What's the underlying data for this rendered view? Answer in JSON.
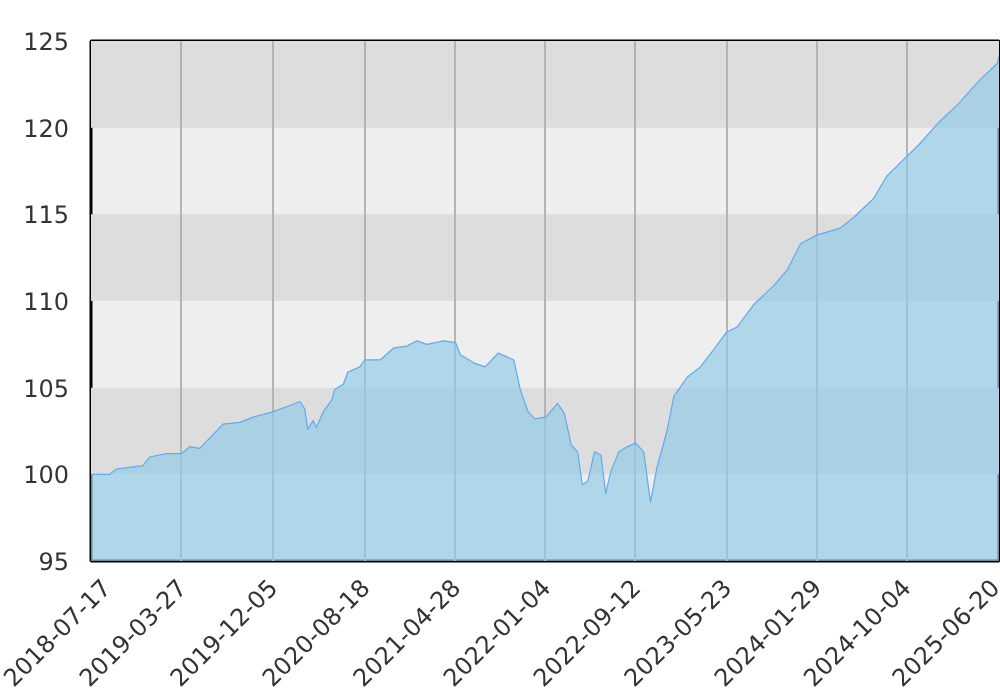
{
  "chart_data": {
    "type": "area",
    "x": [
      "2018-07-17",
      "2018-09-07",
      "2018-09-25",
      "2018-12-09",
      "2018-12-27",
      "2019-02-12",
      "2019-03-27",
      "2019-04-18",
      "2019-05-16",
      "2019-07-20",
      "2019-09-05",
      "2019-10-12",
      "2019-12-05",
      "2020-01-13",
      "2020-02-19",
      "2020-03-03",
      "2020-03-12",
      "2020-03-27",
      "2020-04-05",
      "2020-04-24",
      "2020-05-18",
      "2020-05-26",
      "2020-06-19",
      "2020-07-02",
      "2020-08-04",
      "2020-08-18",
      "2020-09-30",
      "2020-11-07",
      "2020-12-13",
      "2021-01-10",
      "2021-02-07",
      "2021-03-26",
      "2021-04-28",
      "2021-05-11",
      "2021-06-21",
      "2021-07-19",
      "2021-08-25",
      "2021-10-07",
      "2021-10-25",
      "2021-11-16",
      "2021-12-05",
      "2022-01-04",
      "2022-02-06",
      "2022-02-25",
      "2022-03-16",
      "2022-04-03",
      "2022-04-16",
      "2022-05-01",
      "2022-05-20",
      "2022-06-07",
      "2022-06-20",
      "2022-07-05",
      "2022-07-27",
      "2022-08-20",
      "2022-09-12",
      "2022-10-04",
      "2022-10-23",
      "2022-11-10",
      "2022-12-08",
      "2022-12-27",
      "2023-02-02",
      "2023-03-11",
      "2023-04-17",
      "2023-05-23",
      "2023-06-21",
      "2023-08-07",
      "2023-10-02",
      "2023-11-08",
      "2023-12-15",
      "2024-01-29",
      "2024-04-03",
      "2024-05-10",
      "2024-07-05",
      "2024-08-11",
      "2024-10-04",
      "2024-11-08",
      "2025-01-03",
      "2025-02-28",
      "2025-04-25",
      "2025-06-15",
      "2025-06-20"
    ],
    "series": [
      {
        "color": "#62a9f0",
        "values": [
          100.0,
          100.0,
          100.3,
          100.5,
          101.0,
          101.2,
          101.2,
          101.6,
          101.5,
          102.9,
          103.0,
          103.3,
          103.6,
          103.9,
          104.2,
          103.8,
          102.6,
          103.1,
          102.7,
          103.6,
          104.3,
          104.9,
          105.2,
          105.9,
          106.2,
          106.6,
          106.6,
          107.3,
          107.4,
          107.7,
          107.5,
          107.7,
          107.6,
          106.9,
          106.4,
          106.2,
          107.0,
          106.6,
          104.9,
          103.6,
          103.2,
          103.3,
          104.1,
          103.5,
          101.7,
          101.3,
          99.4,
          99.6,
          101.3,
          101.1,
          98.9,
          100.2,
          101.3,
          101.6,
          101.8,
          101.3,
          98.4,
          100.4,
          102.5,
          104.5,
          105.6,
          106.2,
          107.2,
          108.2,
          108.5,
          109.8,
          110.9,
          111.8,
          113.3,
          113.8,
          114.2,
          114.8,
          115.9,
          117.2,
          118.3,
          119.0,
          120.3,
          121.4,
          122.7,
          123.7,
          124.1
        ]
      }
    ],
    "xlim": [
      "2018-07-17",
      "2025-06-20"
    ],
    "xticks": [
      {
        "value": "2018-07-17",
        "label": "2018-07-17"
      },
      {
        "value": "2019-03-27",
        "label": "2019-03-27"
      },
      {
        "value": "2019-12-05",
        "label": "2019-12-05"
      },
      {
        "value": "2020-08-18",
        "label": "2020-08-18"
      },
      {
        "value": "2021-04-28",
        "label": "2021-04-28"
      },
      {
        "value": "2022-01-04",
        "label": "2022-01-04"
      },
      {
        "value": "2022-09-12",
        "label": "2022-09-12"
      },
      {
        "value": "2023-05-23",
        "label": "2023-05-23"
      },
      {
        "value": "2024-01-29",
        "label": "2024-01-29"
      },
      {
        "value": "2024-10-04",
        "label": "2024-10-04"
      },
      {
        "value": "2025-06-20",
        "label": "2025-06-20"
      }
    ],
    "ylim": [
      95,
      125
    ],
    "yticks": [
      95,
      100,
      105,
      110,
      115,
      120,
      125
    ],
    "grid": true
  }
}
